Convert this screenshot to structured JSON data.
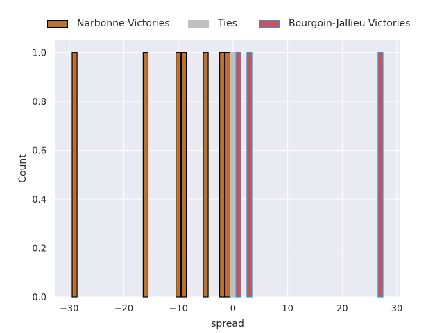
{
  "chart_data": {
    "type": "bar",
    "title": "",
    "xlabel": "spread",
    "ylabel": "Count",
    "xlim": [
      -32.5,
      30.5
    ],
    "ylim": [
      0,
      1.05
    ],
    "xticks": [
      -30,
      -20,
      -10,
      0,
      10,
      20,
      30
    ],
    "xtick_labels": [
      "−30",
      "−20",
      "−10",
      "0",
      "10",
      "20",
      "30"
    ],
    "yticks": [
      0.0,
      0.2,
      0.4,
      0.6,
      0.8,
      1.0
    ],
    "ytick_labels": [
      "0.0",
      "0.2",
      "0.4",
      "0.6",
      "0.8",
      "1.0"
    ],
    "grid": true,
    "legend_placement": "top-center outside",
    "series": [
      {
        "name": "Narbonne Victories",
        "color": "#b87333",
        "edgecolor": "#000000",
        "bars": [
          {
            "x": -29,
            "value": 1
          },
          {
            "x": -16,
            "value": 1
          },
          {
            "x": -10,
            "value": 1
          },
          {
            "x": -9,
            "value": 1
          },
          {
            "x": -5,
            "value": 1
          },
          {
            "x": -2,
            "value": 1
          },
          {
            "x": -1,
            "value": 1
          }
        ]
      },
      {
        "name": "Ties",
        "color": "#c0c0c0",
        "edgecolor": "#c0c0c0",
        "bars": [
          {
            "x": 0,
            "value": 1
          }
        ]
      },
      {
        "name": "Bourgoin-Jallieu Victories",
        "color": "#d0505a",
        "edgecolor": "#3399cc",
        "bars": [
          {
            "x": 1,
            "value": 1
          },
          {
            "x": 3,
            "value": 1
          },
          {
            "x": 27,
            "value": 1
          }
        ]
      }
    ]
  }
}
